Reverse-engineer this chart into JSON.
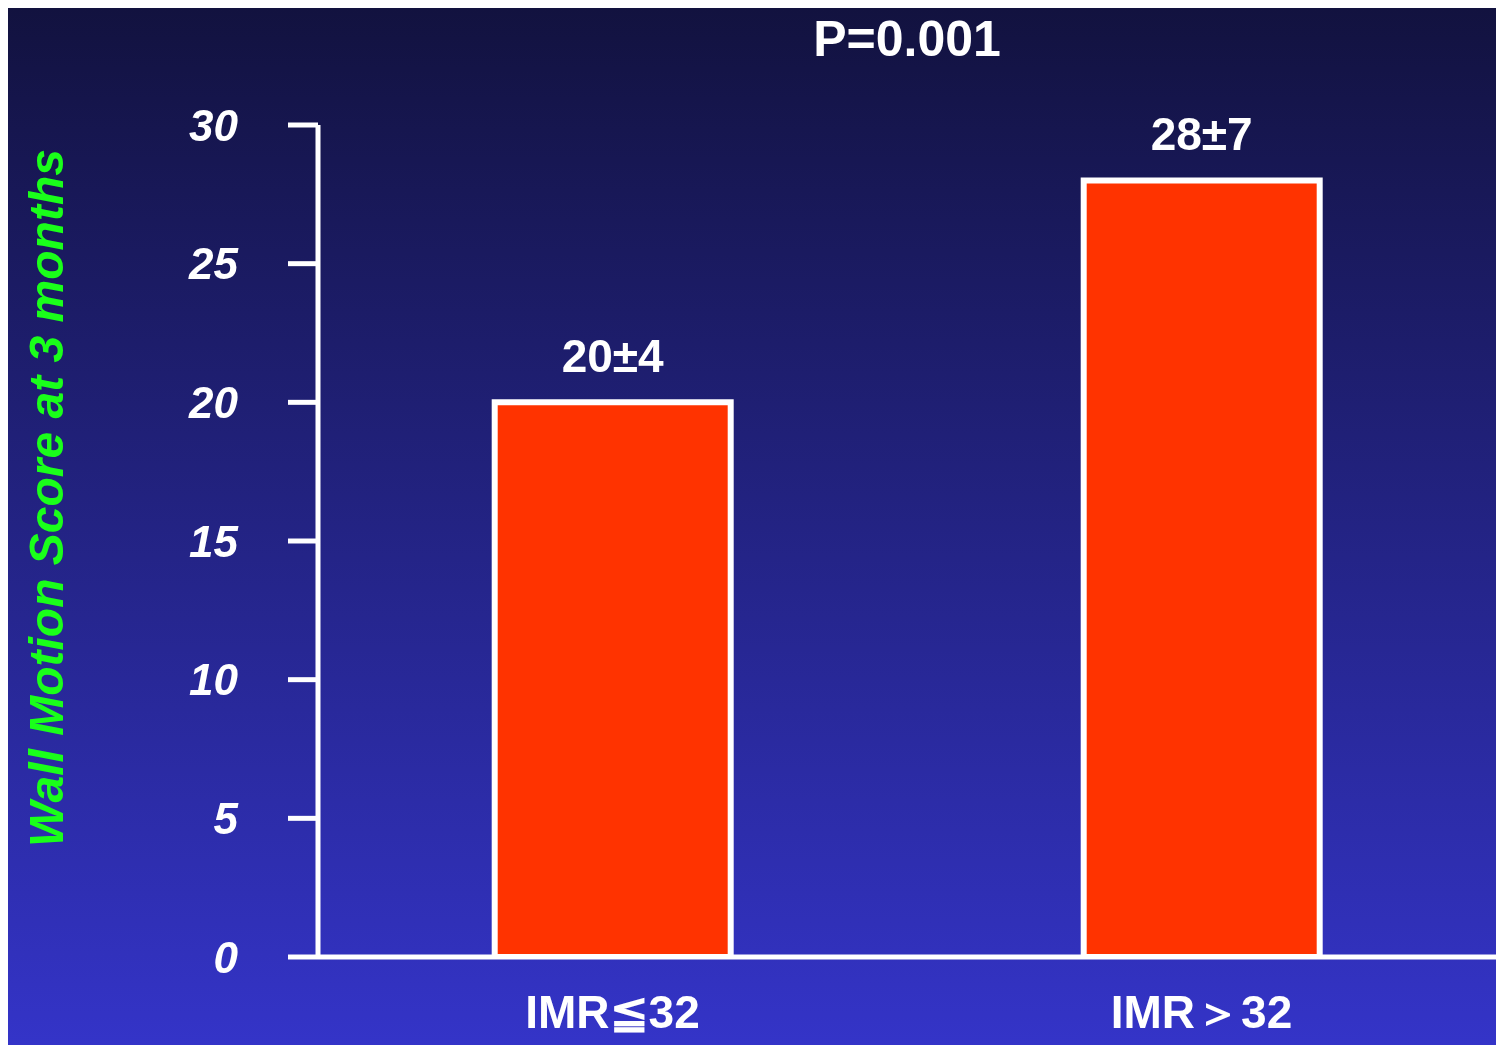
{
  "chart_data": {
    "type": "bar",
    "ylabel": "Wall Motion Score at 3 months",
    "categories": [
      "IMR≦32",
      "IMR＞32"
    ],
    "values": [
      20,
      28
    ],
    "value_labels": [
      "20±4",
      "28±7"
    ],
    "color": "#ff3300",
    "ylim": [
      0,
      30
    ],
    "yticks": [
      0,
      5,
      10,
      15,
      20,
      25,
      30
    ],
    "annotations": [
      "P=0.001"
    ]
  }
}
